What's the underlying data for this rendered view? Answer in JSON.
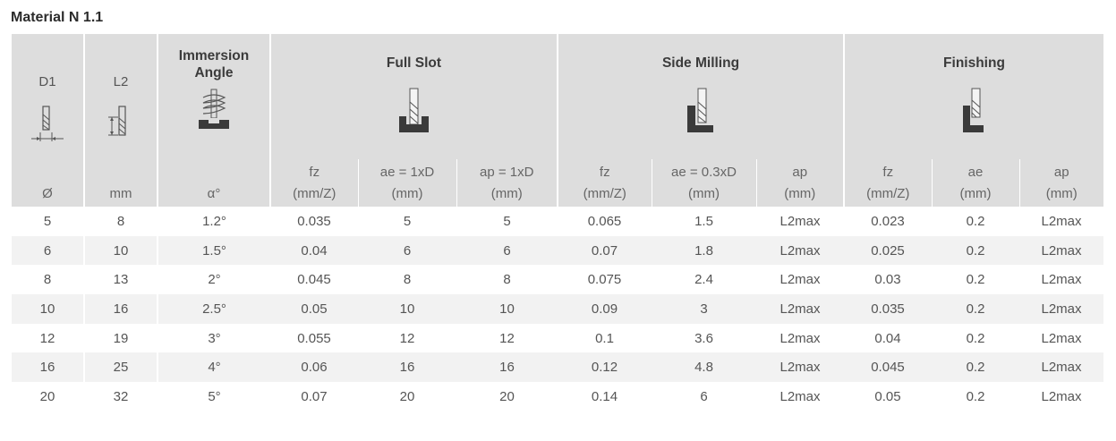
{
  "title": "Material N 1.1",
  "header": {
    "d1_label": "D1",
    "l2_label": "L2",
    "immersion_label_line1": "Immersion",
    "immersion_label_line2": "Angle",
    "full_slot": "Full Slot",
    "side_milling": "Side Milling",
    "finishing": "Finishing"
  },
  "subheaders": [
    {
      "top": "",
      "bottom": "Ø"
    },
    {
      "top": "",
      "bottom": "mm"
    },
    {
      "top": "",
      "bottom": "α°"
    },
    {
      "top": "fz",
      "bottom": "(mm/Z)"
    },
    {
      "top": "ae = 1xD",
      "bottom": "(mm)"
    },
    {
      "top": "ap = 1xD",
      "bottom": "(mm)"
    },
    {
      "top": "fz",
      "bottom": "(mm/Z)"
    },
    {
      "top": "ae = 0.3xD",
      "bottom": "(mm)"
    },
    {
      "top": "ap",
      "bottom": "(mm)"
    },
    {
      "top": "fz",
      "bottom": "(mm/Z)"
    },
    {
      "top": "ae",
      "bottom": "(mm)"
    },
    {
      "top": "ap",
      "bottom": "(mm)"
    }
  ],
  "rows": [
    [
      "5",
      "8",
      "1.2°",
      "0.035",
      "5",
      "5",
      "0.065",
      "1.5",
      "L2max",
      "0.023",
      "0.2",
      "L2max"
    ],
    [
      "6",
      "10",
      "1.5°",
      "0.04",
      "6",
      "6",
      "0.07",
      "1.8",
      "L2max",
      "0.025",
      "0.2",
      "L2max"
    ],
    [
      "8",
      "13",
      "2°",
      "0.045",
      "8",
      "8",
      "0.075",
      "2.4",
      "L2max",
      "0.03",
      "0.2",
      "L2max"
    ],
    [
      "10",
      "16",
      "2.5°",
      "0.05",
      "10",
      "10",
      "0.09",
      "3",
      "L2max",
      "0.035",
      "0.2",
      "L2max"
    ],
    [
      "12",
      "19",
      "3°",
      "0.055",
      "12",
      "12",
      "0.1",
      "3.6",
      "L2max",
      "0.04",
      "0.2",
      "L2max"
    ],
    [
      "16",
      "25",
      "4°",
      "0.06",
      "16",
      "16",
      "0.12",
      "4.8",
      "L2max",
      "0.045",
      "0.2",
      "L2max"
    ],
    [
      "20",
      "32",
      "5°",
      "0.07",
      "20",
      "20",
      "0.14",
      "6",
      "L2max",
      "0.05",
      "0.2",
      "L2max"
    ]
  ],
  "icons": {
    "d1": "end-mill-diameter-icon",
    "l2": "end-mill-length-icon",
    "immersion": "helical-ramp-icon",
    "full_slot": "full-slot-icon",
    "side_milling": "side-milling-icon",
    "finishing": "finishing-icon"
  },
  "colors": {
    "header_bg": "#dddddd",
    "stripe_bg": "#f2f2f2",
    "icon_dark": "#3a3a3a"
  }
}
